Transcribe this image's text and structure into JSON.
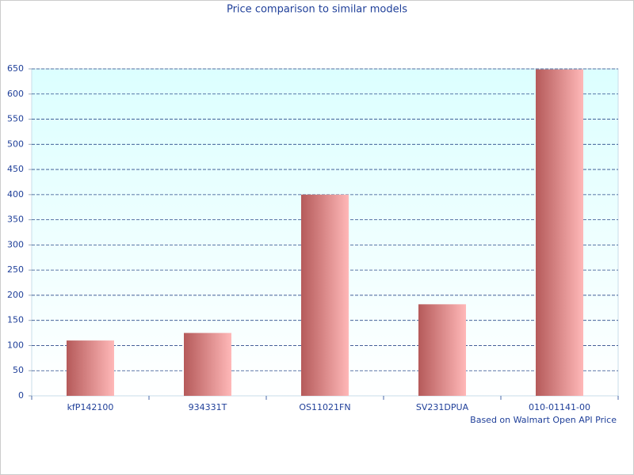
{
  "chart_data": {
    "type": "bar",
    "title": "Price comparison to similar models",
    "footnote": "Based on Walmart Open API Price",
    "categories": [
      "kfP142100",
      "934331T",
      "OS11021FN",
      "SV231DPUA",
      "010-01141-00"
    ],
    "values": [
      110,
      125,
      400,
      182,
      649
    ],
    "color": [
      "#b55a5a",
      "#ffb8b8"
    ],
    "ylim": [
      0,
      650
    ],
    "yticks": [
      0,
      50,
      100,
      150,
      200,
      250,
      300,
      350,
      400,
      450,
      500,
      550,
      600,
      650
    ],
    "grid": true
  }
}
